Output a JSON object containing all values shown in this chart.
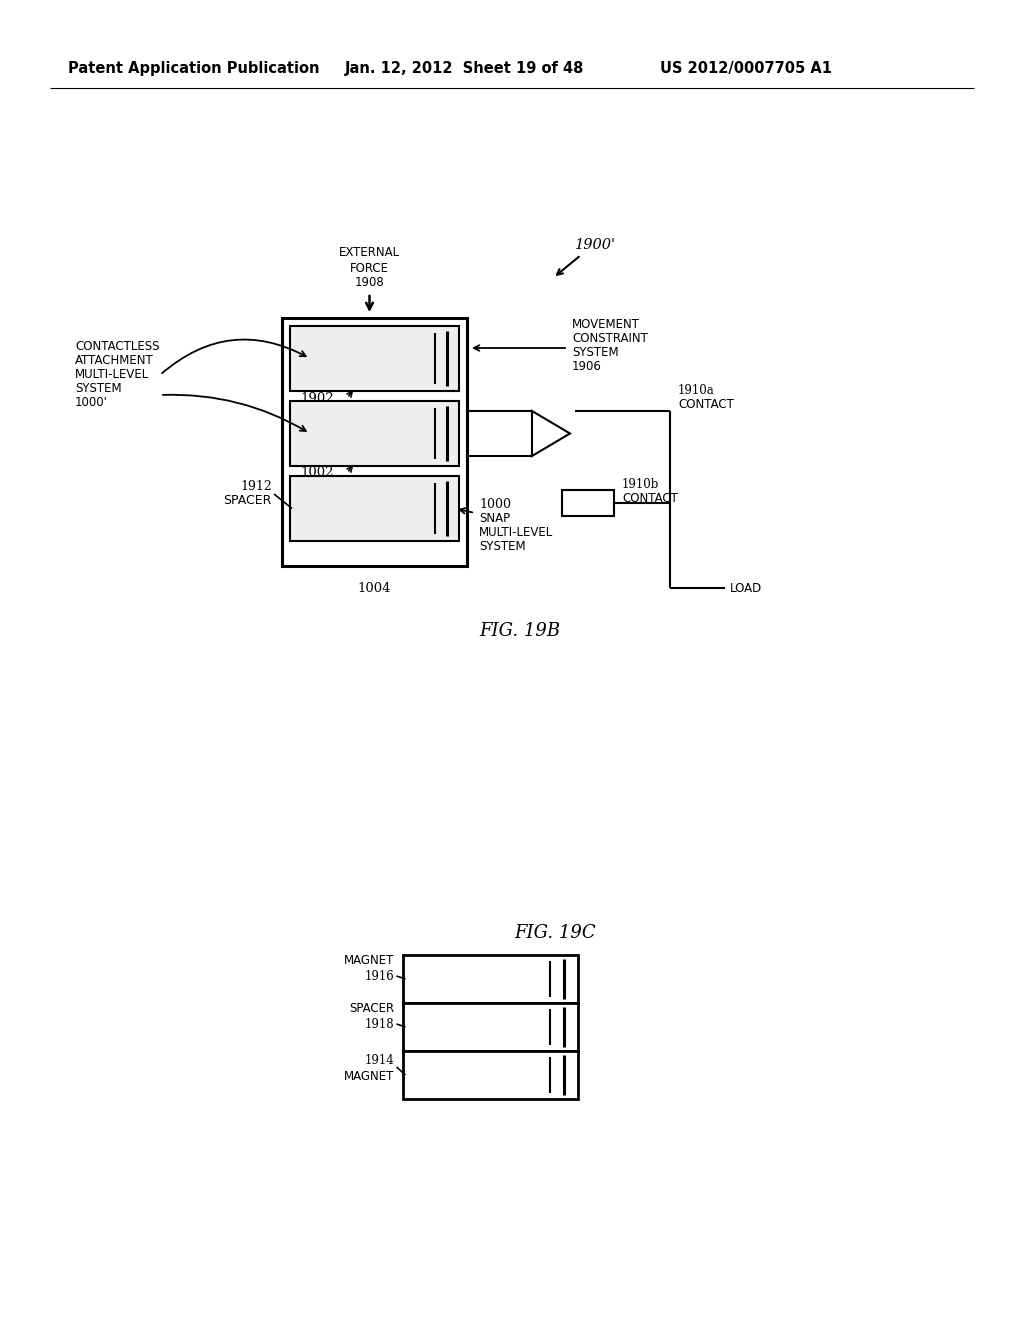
{
  "background_color": "#ffffff",
  "header_text": "Patent Application Publication",
  "header_date": "Jan. 12, 2012  Sheet 19 of 48",
  "header_patent": "US 2012/0007705 A1",
  "fig19b_label": "FIG. 19B",
  "fig19c_label": "FIG. 19C",
  "label_1900": "1900'",
  "label_1908_line1": "EXTERNAL",
  "label_1908_line2": "FORCE",
  "label_1908": "1908",
  "label_1902": "1902",
  "label_1002": "1002",
  "label_1004": "1004",
  "label_1906_line1": "MOVEMENT",
  "label_1906_line2": "CONSTRAINT",
  "label_1906_line3": "SYSTEM",
  "label_1906_num": "1906",
  "label_contactless_1": "CONTACTLESS",
  "label_contactless_2": "ATTACHMENT",
  "label_contactless_3": "MULTI-LEVEL",
  "label_contactless_4": "SYSTEM",
  "label_contactless_5": "1000'",
  "label_1912": "1912",
  "label_spacer": "SPACER",
  "label_1000_num": "1000",
  "label_snap_1": "SNAP",
  "label_snap_2": "MULTI-LEVEL",
  "label_snap_3": "SYSTEM",
  "label_1910a": "1910a",
  "label_contact": "CONTACT",
  "label_1910b": "1910b",
  "label_load": "LOAD",
  "label_1916_m": "MAGNET",
  "label_1916": "1916",
  "label_1918_s": "SPACER",
  "label_1918": "1918",
  "label_1914": "1914",
  "label_1914_m": "MAGNET"
}
